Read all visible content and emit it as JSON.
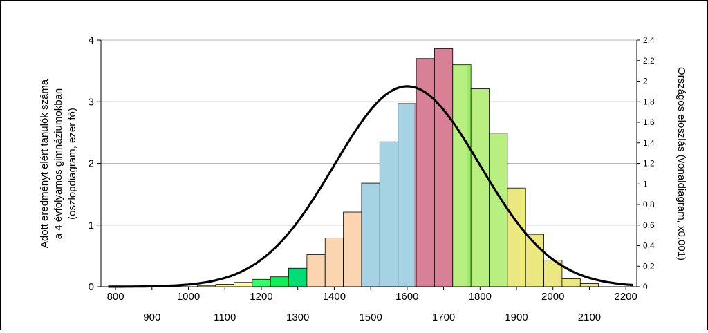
{
  "chart_data": {
    "type": "bar",
    "bar_width": 50,
    "bars": [
      {
        "x": 1050,
        "value": 0.02,
        "color": "#ffff99"
      },
      {
        "x": 1100,
        "value": 0.04,
        "color": "#ffff99"
      },
      {
        "x": 1150,
        "value": 0.07,
        "color": "#ffff99"
      },
      {
        "x": 1200,
        "value": 0.12,
        "color": "#33ff66"
      },
      {
        "x": 1250,
        "value": 0.16,
        "color": "#11ee55"
      },
      {
        "x": 1300,
        "value": 0.3,
        "color": "#00dd77"
      },
      {
        "x": 1350,
        "value": 0.52,
        "color": "#fbd4b0"
      },
      {
        "x": 1400,
        "value": 0.79,
        "color": "#fbd4b0"
      },
      {
        "x": 1450,
        "value": 1.21,
        "color": "#fbd4b0"
      },
      {
        "x": 1500,
        "value": 1.68,
        "color": "#a6d3e3"
      },
      {
        "x": 1550,
        "value": 2.35,
        "color": "#a6d3e3"
      },
      {
        "x": 1600,
        "value": 2.97,
        "color": "#a6d3e3"
      },
      {
        "x": 1650,
        "value": 3.7,
        "color": "#d78096"
      },
      {
        "x": 1700,
        "value": 3.86,
        "color": "#d78096"
      },
      {
        "x": 1750,
        "value": 3.6,
        "color": "#b8ef80"
      },
      {
        "x": 1800,
        "value": 3.21,
        "color": "#b8ef80"
      },
      {
        "x": 1850,
        "value": 2.49,
        "color": "#b8ef80"
      },
      {
        "x": 1900,
        "value": 1.6,
        "color": "#ebe882"
      },
      {
        "x": 1950,
        "value": 0.85,
        "color": "#ebe882"
      },
      {
        "x": 2000,
        "value": 0.43,
        "color": "#ebe882"
      },
      {
        "x": 2050,
        "value": 0.13,
        "color": "#ebe882"
      },
      {
        "x": 2100,
        "value": 0.05,
        "color": "#ebe882"
      }
    ],
    "split_colors": [
      {
        "x": 1600,
        "from": 1620,
        "color": "#d78096"
      },
      {
        "x": 1750,
        "from": 1765,
        "color": "#99ee66"
      },
      {
        "x": 1900,
        "from": 1910,
        "color": "#eeee77"
      }
    ],
    "line_series": {
      "type": "line",
      "mean": 1600,
      "sd": 200,
      "peak": 1.95,
      "x_range": [
        780,
        2220
      ],
      "color": "#000000"
    },
    "xlim": [
      760,
      2230
    ],
    "ylim": [
      0,
      4
    ],
    "y2lim": [
      0,
      2.4
    ],
    "x_ticks_row1": [
      "800",
      "1000",
      "1200",
      "1400",
      "1600",
      "1800",
      "2000",
      "2200"
    ],
    "x_ticks_row2": [
      "900",
      "1100",
      "1300",
      "1500",
      "1700",
      "1900",
      "2100"
    ],
    "y_ticks": [
      "0",
      "1",
      "2",
      "3",
      "4"
    ],
    "y2_ticks": [
      "0",
      "0,2",
      "0,4",
      "0,6",
      "0,8",
      "1",
      "1,2",
      "1,4",
      "1,6",
      "1,8",
      "2",
      "2,2",
      "2,4"
    ],
    "ylabel_lines": [
      "Adott eredményt elért tanulók száma",
      "a 4 évfolyamos gimnáziumokban",
      "(oszlopdiagram, ezer fő)"
    ],
    "y2label": "Országos eloszlás (vonaldiagram, x0.001)",
    "grid": true
  }
}
